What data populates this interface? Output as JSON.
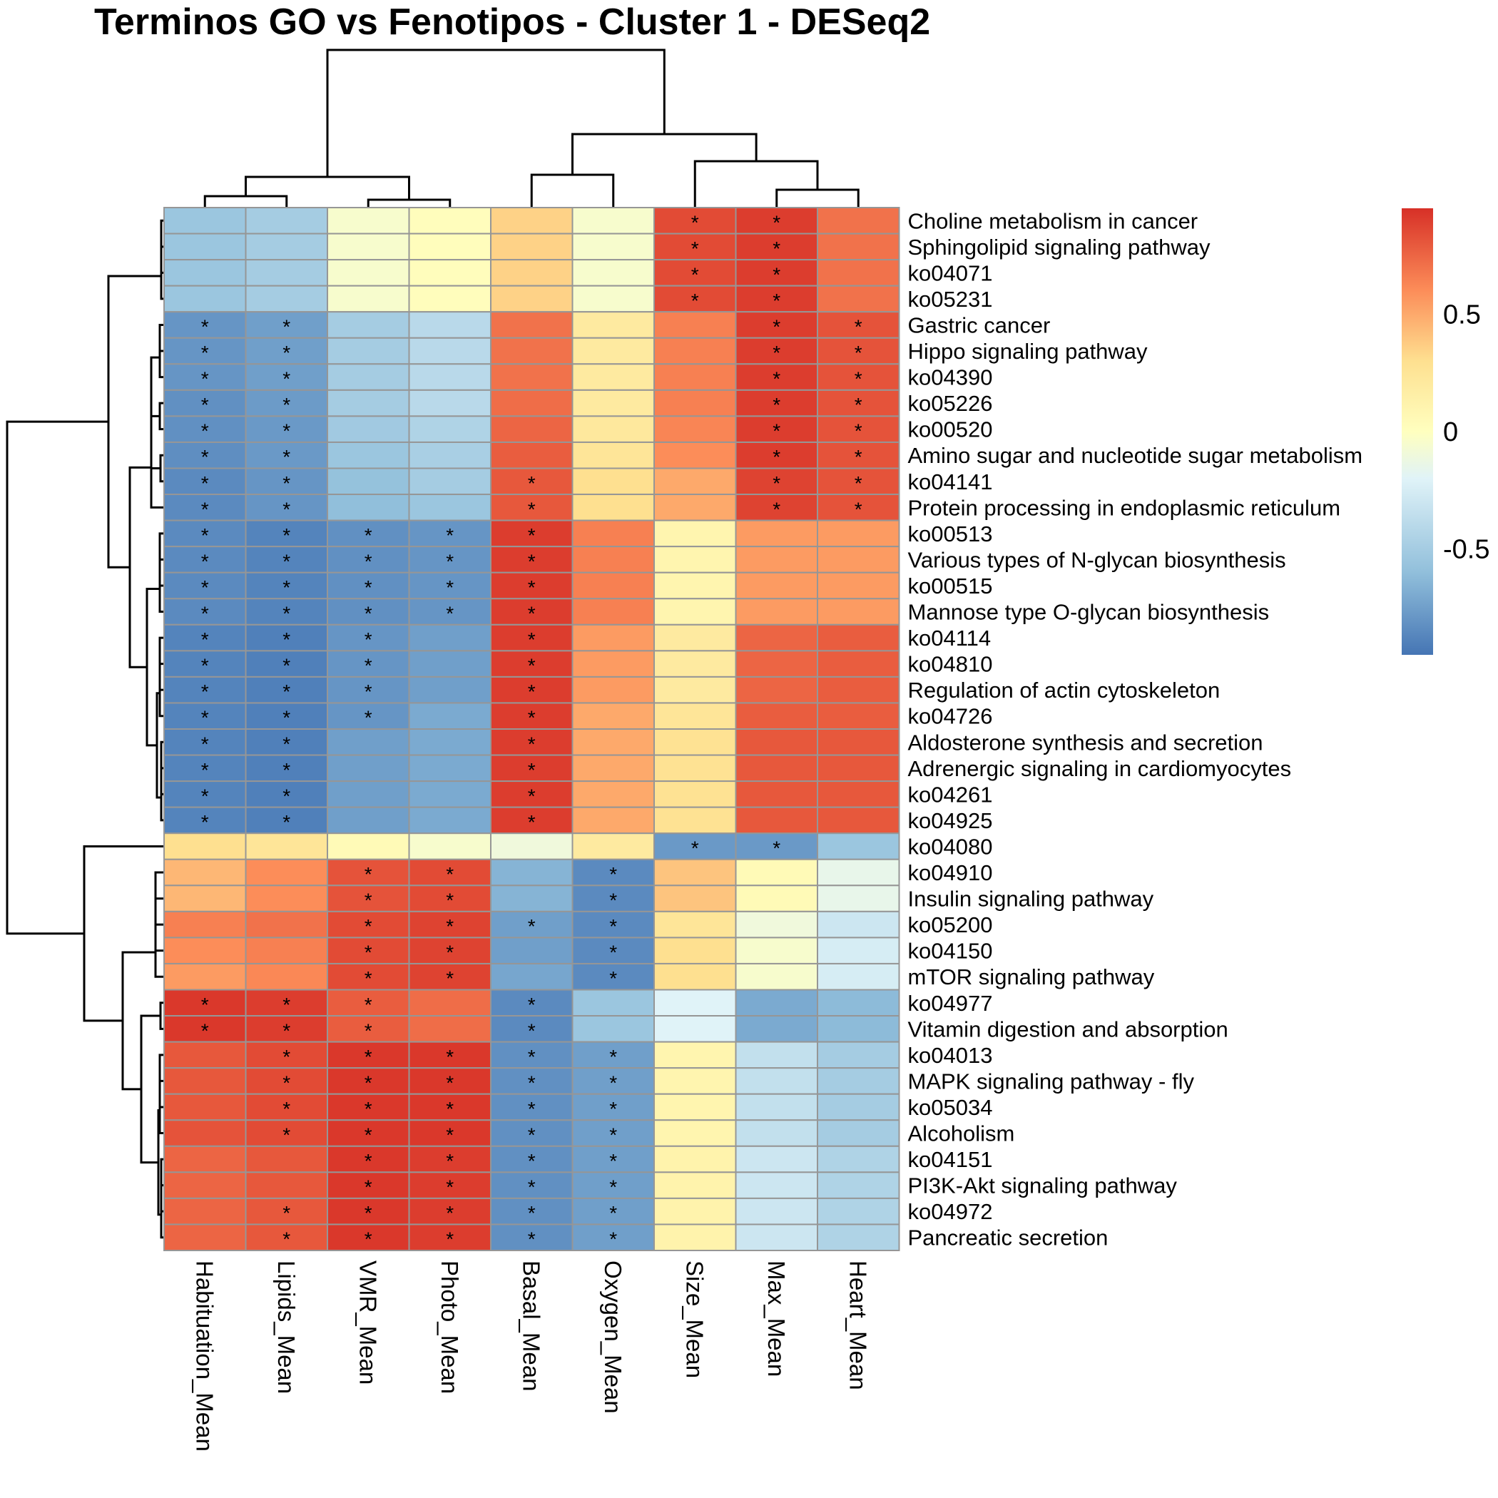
{
  "chart_data": {
    "type": "heatmap",
    "title": "Terminos GO vs Fenotipos - Cluster 1 - DESeq2",
    "columns": [
      "Habituation_Mean",
      "Lipids_Mean",
      "VMR_Mean",
      "Photo_Mean",
      "Basal_Mean",
      "Oxygen_Mean",
      "Size_Mean",
      "Max_Mean",
      "Heart_Mean"
    ],
    "rows": [
      "Choline metabolism in cancer",
      "Sphingolipid signaling pathway",
      "ko04071",
      "ko05231",
      "Gastric cancer",
      "Hippo signaling pathway",
      "ko04390",
      "ko05226",
      "ko00520",
      "Amino sugar and nucleotide sugar metabolism",
      "ko04141",
      "Protein processing in endoplasmic reticulum",
      "ko00513",
      "Various types of N-glycan biosynthesis",
      "ko00515",
      "Mannose type O-glycan biosynthesis",
      "ko04114",
      "ko04810",
      "Regulation of actin cytoskeleton",
      "ko04726",
      "Aldosterone synthesis and secretion",
      "Adrenergic signaling in cardiomyocytes",
      "ko04261",
      "ko04925",
      "ko04080",
      "ko04910",
      "Insulin signaling pathway",
      "ko05200",
      "ko04150",
      "mTOR signaling pathway",
      "ko04977",
      "Vitamin digestion and absorption",
      "ko04013",
      "MAPK signaling pathway - fly",
      "ko05034",
      "Alcoholism",
      "ko04151",
      "PI3K-Akt signaling pathway",
      "ko04972",
      "Pancreatic secretion"
    ],
    "values": [
      [
        -0.55,
        -0.5,
        -0.05,
        0.02,
        0.35,
        -0.05,
        0.85,
        0.9,
        0.7
      ],
      [
        -0.55,
        -0.5,
        -0.05,
        0.02,
        0.35,
        -0.05,
        0.85,
        0.9,
        0.7
      ],
      [
        -0.55,
        -0.5,
        -0.05,
        0.02,
        0.35,
        -0.05,
        0.85,
        0.9,
        0.7
      ],
      [
        -0.55,
        -0.5,
        -0.05,
        0.02,
        0.35,
        -0.05,
        0.85,
        0.9,
        0.7
      ],
      [
        -0.8,
        -0.75,
        -0.5,
        -0.4,
        0.7,
        0.2,
        0.65,
        0.9,
        0.82
      ],
      [
        -0.8,
        -0.75,
        -0.5,
        -0.4,
        0.7,
        0.2,
        0.65,
        0.9,
        0.82
      ],
      [
        -0.8,
        -0.75,
        -0.5,
        -0.4,
        0.7,
        0.2,
        0.65,
        0.9,
        0.82
      ],
      [
        -0.82,
        -0.77,
        -0.5,
        -0.4,
        0.72,
        0.2,
        0.65,
        0.9,
        0.82
      ],
      [
        -0.82,
        -0.78,
        -0.52,
        -0.45,
        0.75,
        0.22,
        0.63,
        0.9,
        0.82
      ],
      [
        -0.83,
        -0.78,
        -0.55,
        -0.48,
        0.78,
        0.25,
        0.6,
        0.9,
        0.82
      ],
      [
        -0.85,
        -0.8,
        -0.58,
        -0.5,
        0.8,
        0.3,
        0.5,
        0.88,
        0.82
      ],
      [
        -0.85,
        -0.8,
        -0.6,
        -0.55,
        0.8,
        0.3,
        0.5,
        0.88,
        0.82
      ],
      [
        -0.85,
        -0.88,
        -0.82,
        -0.8,
        0.9,
        0.65,
        0.1,
        0.55,
        0.55
      ],
      [
        -0.85,
        -0.88,
        -0.82,
        -0.8,
        0.9,
        0.65,
        0.1,
        0.55,
        0.55
      ],
      [
        -0.85,
        -0.88,
        -0.82,
        -0.8,
        0.9,
        0.65,
        0.1,
        0.55,
        0.55
      ],
      [
        -0.85,
        -0.88,
        -0.82,
        -0.8,
        0.9,
        0.65,
        0.1,
        0.55,
        0.55
      ],
      [
        -0.88,
        -0.9,
        -0.8,
        -0.75,
        0.9,
        0.55,
        0.2,
        0.75,
        0.78
      ],
      [
        -0.88,
        -0.9,
        -0.8,
        -0.75,
        0.9,
        0.55,
        0.2,
        0.75,
        0.78
      ],
      [
        -0.88,
        -0.9,
        -0.8,
        -0.75,
        0.9,
        0.55,
        0.2,
        0.75,
        0.78
      ],
      [
        -0.88,
        -0.9,
        -0.8,
        -0.7,
        0.9,
        0.5,
        0.25,
        0.78,
        0.78
      ],
      [
        -0.88,
        -0.9,
        -0.75,
        -0.7,
        0.9,
        0.5,
        0.28,
        0.8,
        0.8
      ],
      [
        -0.88,
        -0.9,
        -0.75,
        -0.7,
        0.9,
        0.5,
        0.28,
        0.8,
        0.8
      ],
      [
        -0.88,
        -0.9,
        -0.75,
        -0.7,
        0.9,
        0.5,
        0.28,
        0.8,
        0.8
      ],
      [
        -0.88,
        -0.9,
        -0.75,
        -0.7,
        0.9,
        0.5,
        0.28,
        0.8,
        0.8
      ],
      [
        0.3,
        0.25,
        0.05,
        -0.05,
        -0.1,
        0.2,
        -0.78,
        -0.78,
        -0.55
      ],
      [
        0.45,
        0.6,
        0.82,
        0.85,
        -0.65,
        -0.85,
        0.4,
        0.05,
        -0.15
      ],
      [
        0.45,
        0.6,
        0.82,
        0.85,
        -0.65,
        -0.85,
        0.4,
        0.05,
        -0.15
      ],
      [
        0.65,
        0.7,
        0.85,
        0.88,
        -0.75,
        -0.85,
        0.25,
        -0.1,
        -0.3
      ],
      [
        0.6,
        0.65,
        0.85,
        0.88,
        -0.75,
        -0.85,
        0.3,
        -0.05,
        -0.25
      ],
      [
        0.55,
        0.62,
        0.85,
        0.88,
        -0.72,
        -0.85,
        0.3,
        -0.05,
        -0.25
      ],
      [
        0.92,
        0.9,
        0.78,
        0.72,
        -0.85,
        -0.55,
        -0.2,
        -0.7,
        -0.62
      ],
      [
        0.92,
        0.9,
        0.78,
        0.72,
        -0.85,
        -0.55,
        -0.2,
        -0.7,
        -0.62
      ],
      [
        0.8,
        0.85,
        0.92,
        0.92,
        -0.82,
        -0.75,
        0.1,
        -0.35,
        -0.5
      ],
      [
        0.8,
        0.85,
        0.92,
        0.92,
        -0.82,
        -0.75,
        0.1,
        -0.35,
        -0.5
      ],
      [
        0.8,
        0.85,
        0.92,
        0.92,
        -0.82,
        -0.75,
        0.1,
        -0.35,
        -0.5
      ],
      [
        0.82,
        0.85,
        0.92,
        0.92,
        -0.82,
        -0.75,
        0.1,
        -0.35,
        -0.5
      ],
      [
        0.75,
        0.8,
        0.92,
        0.9,
        -0.82,
        -0.75,
        0.12,
        -0.3,
        -0.45
      ],
      [
        0.75,
        0.8,
        0.92,
        0.9,
        -0.82,
        -0.75,
        0.12,
        -0.3,
        -0.45
      ],
      [
        0.75,
        0.8,
        0.92,
        0.9,
        -0.82,
        -0.75,
        0.12,
        -0.3,
        -0.45
      ],
      [
        0.75,
        0.8,
        0.92,
        0.9,
        -0.82,
        -0.75,
        0.12,
        -0.3,
        -0.45
      ]
    ],
    "significance": [
      [
        0,
        0,
        0,
        0,
        0,
        0,
        1,
        1,
        0
      ],
      [
        0,
        0,
        0,
        0,
        0,
        0,
        1,
        1,
        0
      ],
      [
        0,
        0,
        0,
        0,
        0,
        0,
        1,
        1,
        0
      ],
      [
        0,
        0,
        0,
        0,
        0,
        0,
        1,
        1,
        0
      ],
      [
        1,
        1,
        0,
        0,
        0,
        0,
        0,
        1,
        1
      ],
      [
        1,
        1,
        0,
        0,
        0,
        0,
        0,
        1,
        1
      ],
      [
        1,
        1,
        0,
        0,
        0,
        0,
        0,
        1,
        1
      ],
      [
        1,
        1,
        0,
        0,
        0,
        0,
        0,
        1,
        1
      ],
      [
        1,
        1,
        0,
        0,
        0,
        0,
        0,
        1,
        1
      ],
      [
        1,
        1,
        0,
        0,
        0,
        0,
        0,
        1,
        1
      ],
      [
        1,
        1,
        0,
        0,
        1,
        0,
        0,
        1,
        1
      ],
      [
        1,
        1,
        0,
        0,
        1,
        0,
        0,
        1,
        1
      ],
      [
        1,
        1,
        1,
        1,
        1,
        0,
        0,
        0,
        0
      ],
      [
        1,
        1,
        1,
        1,
        1,
        0,
        0,
        0,
        0
      ],
      [
        1,
        1,
        1,
        1,
        1,
        0,
        0,
        0,
        0
      ],
      [
        1,
        1,
        1,
        1,
        1,
        0,
        0,
        0,
        0
      ],
      [
        1,
        1,
        1,
        0,
        1,
        0,
        0,
        0,
        0
      ],
      [
        1,
        1,
        1,
        0,
        1,
        0,
        0,
        0,
        0
      ],
      [
        1,
        1,
        1,
        0,
        1,
        0,
        0,
        0,
        0
      ],
      [
        1,
        1,
        1,
        0,
        1,
        0,
        0,
        0,
        0
      ],
      [
        1,
        1,
        0,
        0,
        1,
        0,
        0,
        0,
        0
      ],
      [
        1,
        1,
        0,
        0,
        1,
        0,
        0,
        0,
        0
      ],
      [
        1,
        1,
        0,
        0,
        1,
        0,
        0,
        0,
        0
      ],
      [
        1,
        1,
        0,
        0,
        1,
        0,
        0,
        0,
        0
      ],
      [
        0,
        0,
        0,
        0,
        0,
        0,
        1,
        1,
        0
      ],
      [
        0,
        0,
        1,
        1,
        0,
        1,
        0,
        0,
        0
      ],
      [
        0,
        0,
        1,
        1,
        0,
        1,
        0,
        0,
        0
      ],
      [
        0,
        0,
        1,
        1,
        1,
        1,
        0,
        0,
        0
      ],
      [
        0,
        0,
        1,
        1,
        0,
        1,
        0,
        0,
        0
      ],
      [
        0,
        0,
        1,
        1,
        0,
        1,
        0,
        0,
        0
      ],
      [
        1,
        1,
        1,
        0,
        1,
        0,
        0,
        0,
        0
      ],
      [
        1,
        1,
        1,
        0,
        1,
        0,
        0,
        0,
        0
      ],
      [
        0,
        1,
        1,
        1,
        1,
        1,
        0,
        0,
        0
      ],
      [
        0,
        1,
        1,
        1,
        1,
        1,
        0,
        0,
        0
      ],
      [
        0,
        1,
        1,
        1,
        1,
        1,
        0,
        0,
        0
      ],
      [
        0,
        1,
        1,
        1,
        1,
        1,
        0,
        0,
        0
      ],
      [
        0,
        0,
        1,
        1,
        1,
        1,
        0,
        0,
        0
      ],
      [
        0,
        0,
        1,
        1,
        1,
        1,
        0,
        0,
        0
      ],
      [
        0,
        1,
        1,
        1,
        1,
        1,
        0,
        0,
        0
      ],
      [
        0,
        1,
        1,
        1,
        1,
        1,
        0,
        0,
        0
      ]
    ],
    "star_symbol": "*",
    "color_scale": {
      "min": -0.95,
      "max": 0.95,
      "stops": [
        {
          "v": -0.95,
          "color": "#4575B4"
        },
        {
          "v": -0.6,
          "color": "#91BFDB"
        },
        {
          "v": -0.2,
          "color": "#E0F3F8"
        },
        {
          "v": 0.0,
          "color": "#FFFFBF"
        },
        {
          "v": 0.3,
          "color": "#FEE090"
        },
        {
          "v": 0.6,
          "color": "#FC8D59"
        },
        {
          "v": 0.95,
          "color": "#D73027"
        }
      ]
    },
    "legend": {
      "position": "top-right",
      "ticks": [
        {
          "value": 0.5,
          "label": "0.5"
        },
        {
          "value": 0.0,
          "label": "0"
        },
        {
          "value": -0.5,
          "label": "-0.5"
        }
      ]
    },
    "column_dendrogram": true,
    "row_dendrogram": true
  }
}
